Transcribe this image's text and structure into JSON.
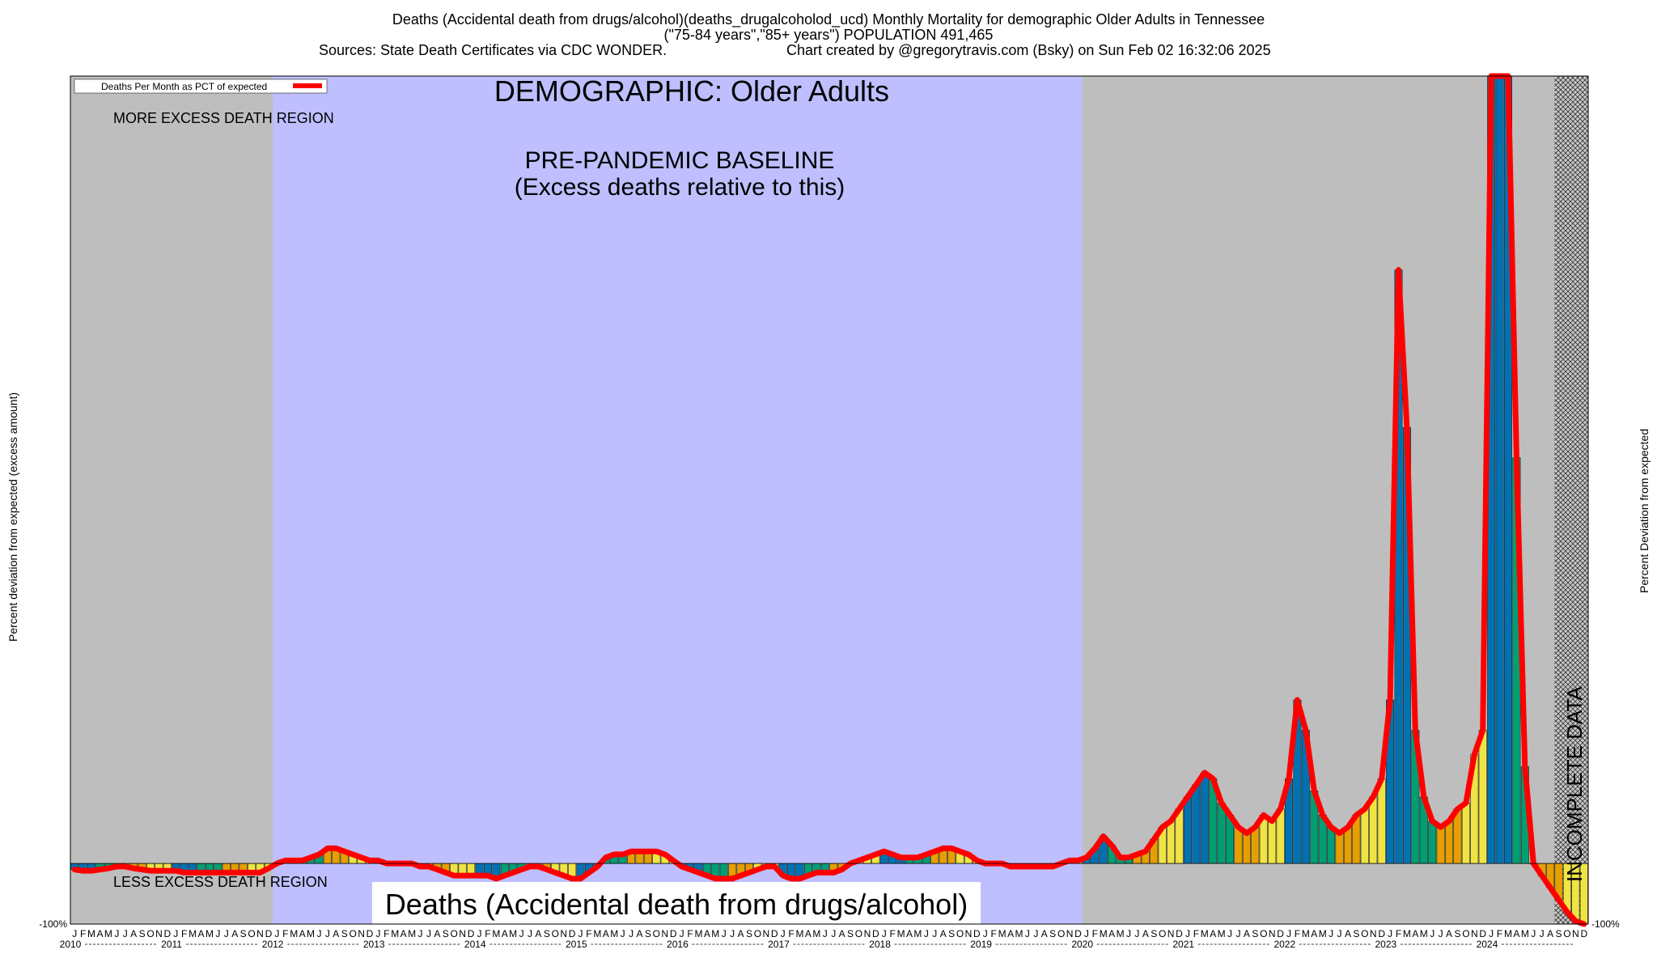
{
  "header": {
    "line1": "Deaths (Accidental death from drugs/alcohol)(deaths_drugalcoholod_ucd) Monthly Mortality for demographic Older Adults in Tennessee",
    "line2": "(\"75-84 years\",\"85+ years\") POPULATION 491,465",
    "line3_left": "Sources: State Death Certificates via CDC WONDER.",
    "line3_right": "Chart created by @gregorytravis.com (Bsky) on Sun Feb 02 16:32:06 2025"
  },
  "annotations": {
    "demographic": "DEMOGRAPHIC: Older Adults",
    "baseline_line1": "PRE-PANDEMIC BASELINE",
    "baseline_line2": "(Excess deaths relative to this)",
    "more_region": "MORE EXCESS DEATH REGION",
    "less_region": "LESS EXCESS DEATH REGION",
    "footer_label": "Deaths (Accidental death from drugs/alcohol)",
    "incomplete": "INCOMPLETE DATA"
  },
  "legend": {
    "label": "Deaths Per Month as PCT of expected"
  },
  "colors": {
    "shaded_region": "#bebebe",
    "baseline_region": "#bfbfff",
    "line": "#ff0000",
    "bar_palette": [
      "#0072b2",
      "#009e73",
      "#e69f00",
      "#f0e442"
    ]
  },
  "chart_data": {
    "type": "bar",
    "title": "Deaths (Accidental death from drugs/alcohol)(deaths_drugalcoholod_ucd) Monthly Mortality for demographic Older Adults in Tennessee",
    "ylabel_left": "Percent deviation from expected (excess amount)",
    "ylabel_right": "Percent Deviation from expected",
    "y_bottom_label": "-100%",
    "x_start": "2010-01",
    "month_letters": [
      "J",
      "F",
      "M",
      "A",
      "M",
      "J",
      "J",
      "A",
      "S",
      "O",
      "N",
      "D"
    ],
    "years": [
      "2010",
      "2011",
      "2012",
      "2013",
      "2014",
      "2015",
      "2016",
      "2017",
      "2018",
      "2019",
      "2020",
      "2021",
      "2022",
      "2023",
      "2024"
    ],
    "ylim": [
      -100,
      1300
    ],
    "baseline_range": [
      "2012-01",
      "2019-12"
    ],
    "incomplete_from": "2024-09",
    "series": [
      {
        "name": "Deaths Per Month as PCT of expected",
        "values": [
          -10,
          -12,
          -12,
          -10,
          -8,
          -5,
          -5,
          -8,
          -10,
          -12,
          -12,
          -12,
          -12,
          -15,
          -15,
          -15,
          -15,
          -15,
          -15,
          -15,
          -15,
          -15,
          -15,
          -8,
          0,
          5,
          5,
          5,
          10,
          15,
          25,
          25,
          20,
          15,
          10,
          5,
          5,
          0,
          0,
          0,
          0,
          -5,
          -5,
          -10,
          -15,
          -20,
          -20,
          -20,
          -20,
          -20,
          -25,
          -20,
          -15,
          -10,
          -5,
          -5,
          -10,
          -15,
          -20,
          -25,
          -25,
          -15,
          -5,
          10,
          15,
          15,
          20,
          20,
          20,
          20,
          15,
          5,
          -5,
          -10,
          -15,
          -20,
          -25,
          -25,
          -25,
          -20,
          -15,
          -10,
          -5,
          -5,
          -20,
          -25,
          -25,
          -20,
          -15,
          -15,
          -15,
          -10,
          0,
          5,
          10,
          15,
          20,
          15,
          10,
          10,
          10,
          15,
          20,
          25,
          25,
          20,
          15,
          5,
          0,
          0,
          0,
          -5,
          -5,
          -5,
          -5,
          -5,
          -5,
          0,
          5,
          5,
          10,
          25,
          45,
          30,
          10,
          10,
          15,
          20,
          40,
          60,
          70,
          90,
          110,
          130,
          150,
          140,
          100,
          80,
          60,
          50,
          60,
          80,
          70,
          90,
          140,
          270,
          220,
          120,
          80,
          60,
          50,
          60,
          80,
          90,
          110,
          140,
          270,
          980,
          720,
          220,
          110,
          70,
          60,
          70,
          90,
          100,
          180,
          220,
          1300,
          1300,
          1300,
          670,
          160,
          0,
          -20,
          -40,
          -60,
          -80,
          -95,
          -100
        ]
      }
    ]
  }
}
